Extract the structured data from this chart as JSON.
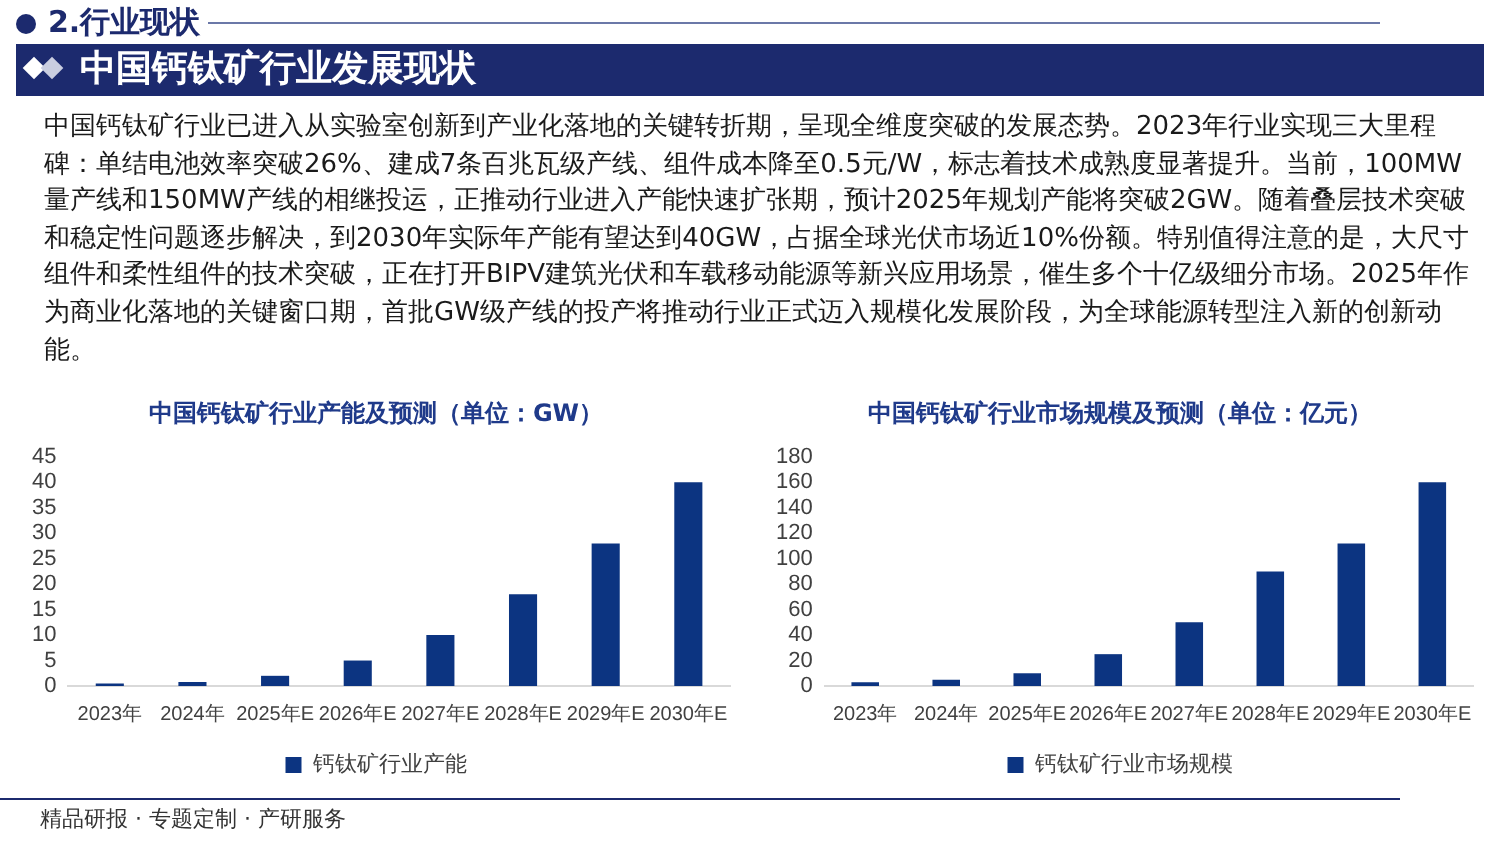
{
  "chart_data": [
    {
      "type": "other",
      "title": "中国钙钛矿行业发展现状",
      "annotations": [
        "2.行业现状",
        "中国钙钛矿行业已进入从实验室创新到产业化落地的关键转折期，呈现全维度突破的发展态势。2023年行业实现三大里程碑：单结电池效率突破26%、建成7条百兆瓦级产线、组件成本降至0.5元/W，标志着技术成熟度显著提升。当前，100MW量产线和150MW产线的相继投运，正推动行业进入产能快速扩张期，预计2025年规划产能将突破2GW。随着叠层技术突破和稳定性问题逐步解决，到2030年实际年产能有望达到40GW，占据全球光伏市场近10%份额。特别值得注意的是，大尺寸组件和柔性组件的技术突破，正在打开BIPV建筑光伏和车载移动能源等新兴应用场景，催生多个十亿级细分市场。2025年作为商业化落地的关键窗口期，首批GW级产线的投产将推动行业正式迈入规模化发展阶段，为全球能源转型注入新的创新动能。",
        "精品研报 · 专题定制 · 产研服务"
      ]
    },
    {
      "type": "bar",
      "title": "中国钙钛矿行业产能及预测（单位：GW）",
      "categories": [
        "2023年",
        "2024年",
        "2025年E",
        "2026年E",
        "2027年E",
        "2028年E",
        "2029年E",
        "2030年E"
      ],
      "series": [
        {
          "name": "钙钛矿行业产能",
          "color": "#0c3481",
          "values": [
            0.5,
            0.8,
            2,
            5,
            10,
            18,
            28,
            40
          ]
        }
      ],
      "ylim": [
        0,
        45
      ],
      "yticks": [
        0,
        5,
        10,
        15,
        20,
        25,
        30,
        35,
        40,
        45
      ],
      "legend": "bottom"
    },
    {
      "type": "bar",
      "title": "中国钙钛矿行业市场规模及预测（单位：亿元）",
      "categories": [
        "2023年",
        "2024年",
        "2025年E",
        "2026年E",
        "2027年E",
        "2028年E",
        "2029年E",
        "2030年E"
      ],
      "series": [
        {
          "name": "钙钛矿行业市场规模",
          "color": "#0c3481",
          "values": [
            3,
            5,
            10,
            25,
            50,
            90,
            112,
            160
          ]
        }
      ],
      "ylim": [
        0,
        180
      ],
      "yticks": [
        0,
        20,
        40,
        60,
        80,
        100,
        120,
        140,
        160,
        180
      ],
      "legend": "bottom"
    }
  ]
}
